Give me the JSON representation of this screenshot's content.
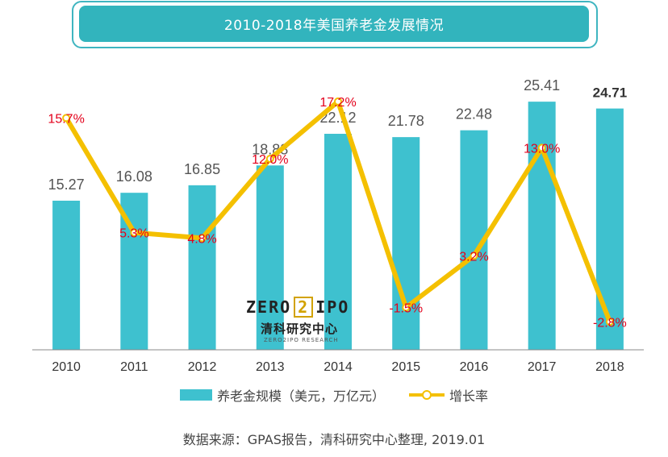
{
  "title": "2010-2018年美国养老金发展情况",
  "source": "数据来源：GPAS报告，清科研究中心整理, 2019.01",
  "logo": {
    "left": "ZERO",
    "mid": "2",
    "right": "IPO",
    "cn": "清科研究中心",
    "sub": "ZERO2IPO RESEARCH"
  },
  "colors": {
    "bar": "#3ec1cf",
    "line": "#f4c000",
    "rate_label": "#e3001b",
    "value_label": "#555555"
  },
  "chart_data": {
    "type": "bar",
    "categories": [
      "2010",
      "2011",
      "2012",
      "2013",
      "2014",
      "2015",
      "2016",
      "2017",
      "2018"
    ],
    "series": [
      {
        "name": "养老金规模（美元，万亿元）",
        "type": "bar",
        "values": [
          15.27,
          16.08,
          16.85,
          18.88,
          22.12,
          21.78,
          22.48,
          25.41,
          24.71
        ],
        "labels": [
          "15.27",
          "16.08",
          "16.85",
          "18.88",
          "22.12",
          "21.78",
          "22.48",
          "25.41",
          "24.71"
        ]
      },
      {
        "name": "增长率",
        "type": "line",
        "values": [
          15.7,
          5.3,
          4.8,
          12.0,
          17.2,
          -1.5,
          3.2,
          13.0,
          -2.8
        ],
        "labels": [
          "15.7%",
          "5.3%",
          "4.8%",
          "12.0%",
          "17.2%",
          "-1.5%",
          "3.2%",
          "13.0%",
          "-2.8%"
        ]
      }
    ],
    "bar_axis_range": [
      0,
      26
    ],
    "line_axis_range": [
      -3,
      18
    ],
    "grid": false,
    "legend_position": "bottom"
  }
}
